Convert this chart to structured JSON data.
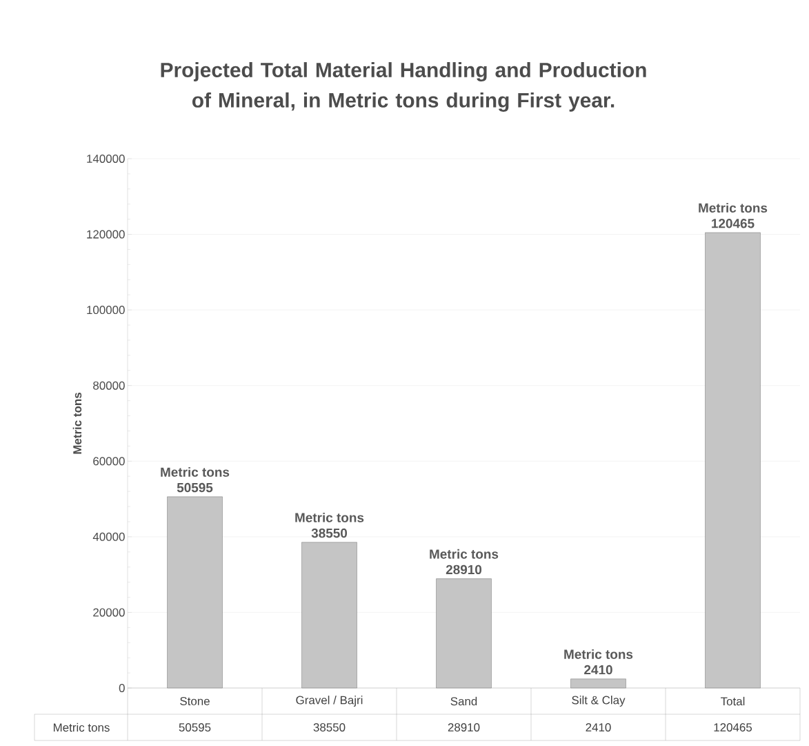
{
  "chart_data": {
    "type": "bar",
    "title": "Projected Total Material Handling and Production of Mineral, in Metric tons during First  year.",
    "ylabel": "Metric tons",
    "categories": [
      "Stone",
      "Gravel / Bajri",
      "Sand",
      "Silt & Clay",
      "Total"
    ],
    "series": [
      {
        "name": "Metric tons",
        "color": "#595959",
        "values": [
          50595,
          38550,
          28910,
          2410,
          120465
        ]
      }
    ],
    "annotations": [
      "50595",
      "38550",
      "28910",
      "2410",
      "120465"
    ],
    "ylim": [
      0,
      140000
    ],
    "yticks": [
      0,
      20000,
      40000,
      60000,
      80000,
      100000,
      120000,
      140000
    ],
    "grid": "y",
    "data_labels": true
  }
}
